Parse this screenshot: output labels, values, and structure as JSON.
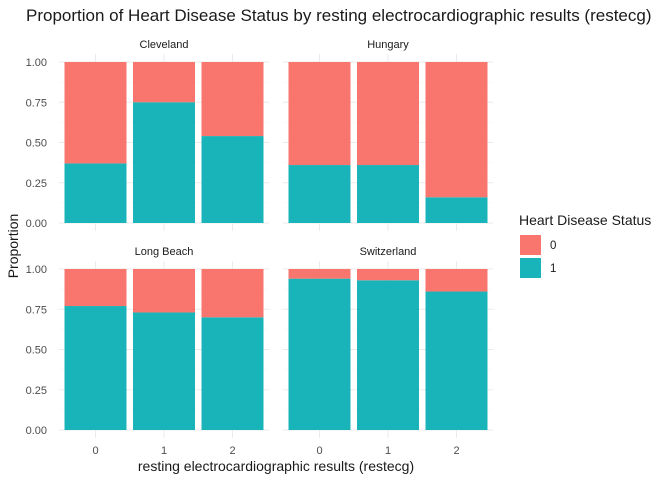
{
  "chart_data": {
    "type": "bar",
    "stacked": true,
    "title": "Proportion of Heart Disease Status by resting electrocardiographic results (restecg)",
    "xlabel": "resting electrocardiographic results (restecg)",
    "ylabel": "Proportion",
    "ylim": [
      0,
      1
    ],
    "yticks": [
      "0.00",
      "0.25",
      "0.50",
      "0.75",
      "1.00"
    ],
    "categories": [
      "0",
      "1",
      "2"
    ],
    "grid": true,
    "legend": {
      "title": "Heart Disease Status",
      "position": "right",
      "entries": [
        {
          "label": "0",
          "color": "#F8766D"
        },
        {
          "label": "1",
          "color": "#19B4BA"
        }
      ]
    },
    "series_order": [
      "1",
      "0"
    ],
    "panels": [
      {
        "name": "Cleveland",
        "values_1": [
          0.37,
          0.75,
          0.54
        ],
        "values_0": [
          0.63,
          0.25,
          0.46
        ]
      },
      {
        "name": "Hungary",
        "values_1": [
          0.36,
          0.36,
          0.16
        ],
        "values_0": [
          0.64,
          0.64,
          0.84
        ]
      },
      {
        "name": "Long Beach",
        "values_1": [
          0.77,
          0.73,
          0.7
        ],
        "values_0": [
          0.23,
          0.27,
          0.3
        ]
      },
      {
        "name": "Switzerland",
        "values_1": [
          0.94,
          0.93,
          0.86
        ],
        "values_0": [
          0.06,
          0.07,
          0.14
        ]
      }
    ]
  }
}
